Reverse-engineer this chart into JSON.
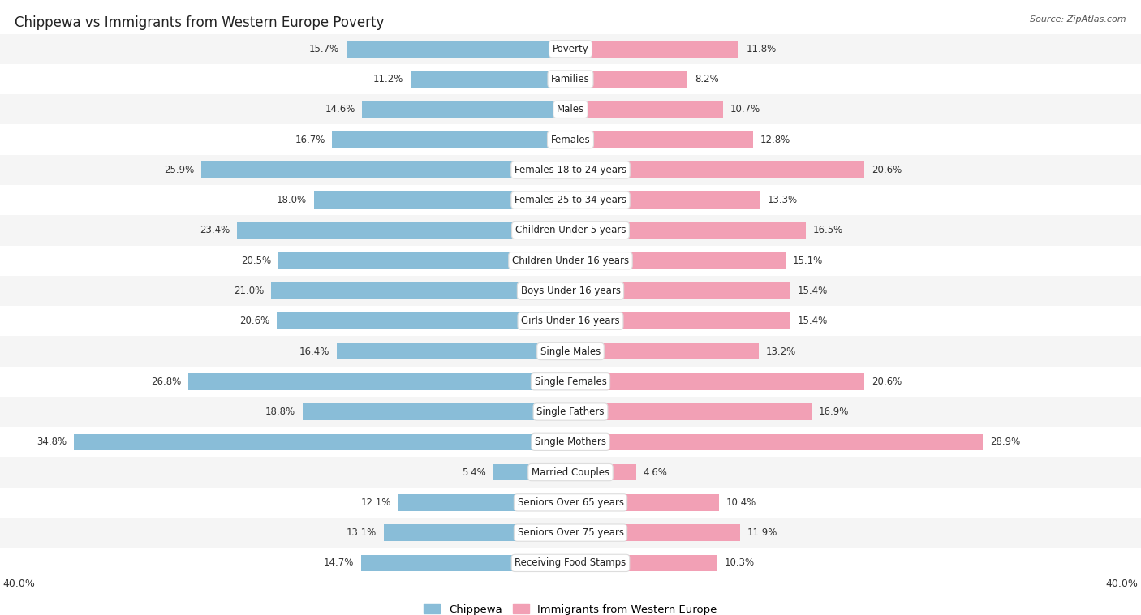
{
  "title": "Chippewa vs Immigrants from Western Europe Poverty",
  "source": "Source: ZipAtlas.com",
  "categories": [
    "Poverty",
    "Families",
    "Males",
    "Females",
    "Females 18 to 24 years",
    "Females 25 to 34 years",
    "Children Under 5 years",
    "Children Under 16 years",
    "Boys Under 16 years",
    "Girls Under 16 years",
    "Single Males",
    "Single Females",
    "Single Fathers",
    "Single Mothers",
    "Married Couples",
    "Seniors Over 65 years",
    "Seniors Over 75 years",
    "Receiving Food Stamps"
  ],
  "chippewa_values": [
    15.7,
    11.2,
    14.6,
    16.7,
    25.9,
    18.0,
    23.4,
    20.5,
    21.0,
    20.6,
    16.4,
    26.8,
    18.8,
    34.8,
    5.4,
    12.1,
    13.1,
    14.7
  ],
  "immigrants_values": [
    11.8,
    8.2,
    10.7,
    12.8,
    20.6,
    13.3,
    16.5,
    15.1,
    15.4,
    15.4,
    13.2,
    20.6,
    16.9,
    28.9,
    4.6,
    10.4,
    11.9,
    10.3
  ],
  "chippewa_color": "#89BDD8",
  "immigrants_color": "#F2A0B5",
  "chippewa_label": "Chippewa",
  "immigrants_label": "Immigrants from Western Europe",
  "x_max": 40.0,
  "row_bg_light": "#f5f5f5",
  "row_bg_white": "#ffffff",
  "label_fontsize": 8.5,
  "value_fontsize": 8.5,
  "title_fontsize": 12,
  "source_fontsize": 8
}
